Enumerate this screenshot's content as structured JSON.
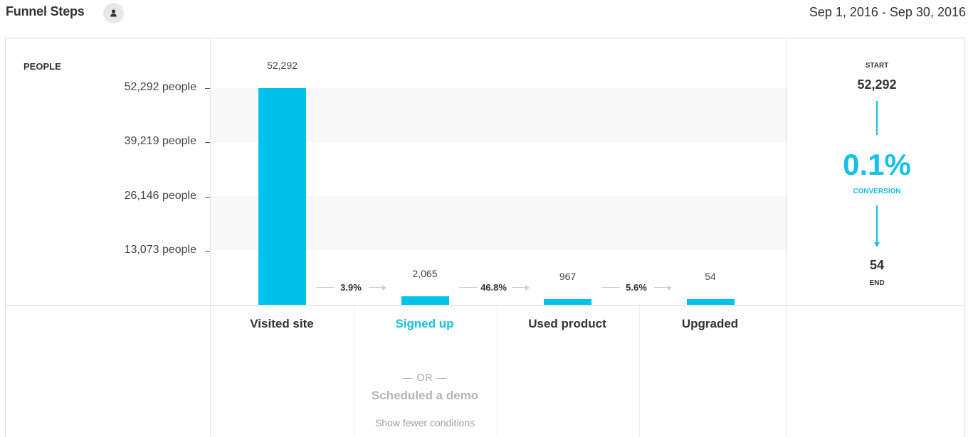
{
  "header": {
    "title": "Funnel Steps",
    "user_icon": "user-icon",
    "date_range": "Sep 1, 2016 - Sep 30, 2016"
  },
  "chart_data": {
    "type": "bar",
    "ylabel": "PEOPLE",
    "categories": [
      "Visited site",
      "Signed up",
      "Used product",
      "Upgraded"
    ],
    "values": [
      52292,
      2065,
      967,
      54
    ],
    "value_labels": [
      "52,292",
      "2,065",
      "967",
      "54"
    ],
    "ylim": [
      0,
      52292
    ],
    "y_ticks": [
      {
        "value": 52292,
        "label": "52,292 people"
      },
      {
        "value": 39219,
        "label": "39,219 people"
      },
      {
        "value": 26146,
        "label": "26,146 people"
      },
      {
        "value": 13073,
        "label": "13,073 people"
      }
    ],
    "step_conversions": [
      "3.9%",
      "46.8%",
      "5.6%"
    ],
    "bar_color": "#00c3ec",
    "active_step": 1
  },
  "step_alternatives": {
    "separator": "— OR —",
    "alt_step": "Scheduled a demo",
    "toggle_label": "Show fewer conditions"
  },
  "summary": {
    "start_caption": "START",
    "start_value": "52,292",
    "conversion_value": "0.1%",
    "conversion_caption": "CONVERSION",
    "end_value": "54",
    "end_caption": "END",
    "accent_color": "#14c0e8"
  }
}
